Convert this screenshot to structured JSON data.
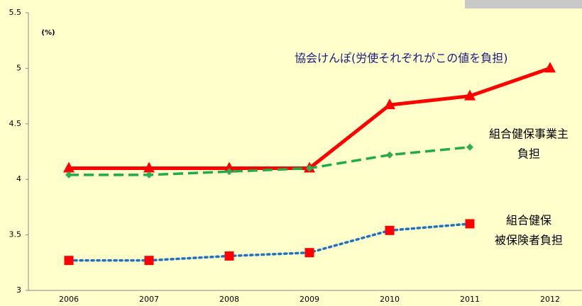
{
  "chart_data": {
    "type": "line",
    "unit_label": "(%)",
    "categories": [
      "2006",
      "2007",
      "2008",
      "2009",
      "2010",
      "2011",
      "2012"
    ],
    "ylim": [
      3,
      5.5
    ],
    "yticks": [
      3,
      3.5,
      4,
      4.5,
      5,
      5.5
    ],
    "background": "#ffffcc",
    "series": [
      {
        "name_lines": [
          "協会けんぽ(労使それぞれがこの値を負担)"
        ],
        "color": "#ff0000",
        "marker": "triangle",
        "marker_color": "#ff0000",
        "dash": "solid",
        "label_color": "#1a1a80",
        "values": [
          4.1,
          4.1,
          4.1,
          4.1,
          4.67,
          4.75,
          5.0
        ]
      },
      {
        "name_lines": [
          "組合健保事業主",
          "負担"
        ],
        "color": "#22aa44",
        "marker": "diamond",
        "marker_color": "#33aa55",
        "dash": "dashed",
        "label_color": "#000000",
        "values": [
          4.04,
          4.04,
          4.07,
          4.1,
          4.22,
          4.29,
          null
        ]
      },
      {
        "name_lines": [
          "組合健保",
          "被保険者負担"
        ],
        "color": "#1f6fc5",
        "marker": "square",
        "marker_color": "#ff0000",
        "dash": "dotted",
        "label_color": "#000000",
        "values": [
          3.27,
          3.27,
          3.31,
          3.34,
          3.54,
          3.6,
          null
        ]
      }
    ]
  }
}
